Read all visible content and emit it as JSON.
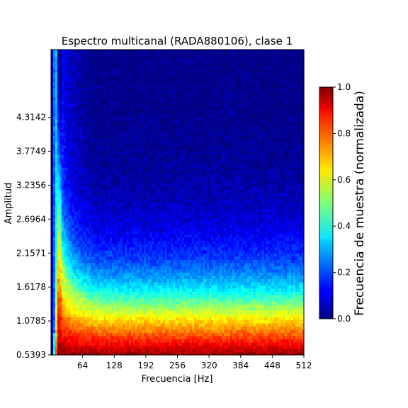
{
  "chart_data": {
    "type": "heatmap",
    "title": "Espectro multicanal (RADA880106), clase 1",
    "xlabel": "Frecuencia [Hz]",
    "ylabel": "Amplitud",
    "xlim": [
      0,
      512
    ],
    "ylim": [
      0.5393,
      5.39
    ],
    "x_ticks": [
      64,
      128,
      192,
      256,
      320,
      384,
      448,
      512
    ],
    "x_tick_labels": [
      "64",
      "128",
      "192",
      "256",
      "320",
      "384",
      "448",
      "512"
    ],
    "y_ticks": [
      0.5393,
      1.0785,
      1.6178,
      2.1571,
      2.6964,
      3.2356,
      3.7749,
      4.3142
    ],
    "y_tick_labels": [
      "0.5393",
      "1.0785",
      "1.6178",
      "2.1571",
      "2.6964",
      "3.2356",
      "3.7749",
      "4.3142"
    ],
    "colormap": "jet",
    "colorbar": {
      "label": "Frecuencia de muestra (normalizada)",
      "range": [
        0,
        1
      ],
      "ticks": [
        0.0,
        0.2,
        0.4,
        0.6,
        0.8,
        1.0
      ],
      "tick_labels": [
        "0.0",
        "0.2",
        "0.4",
        "0.6",
        "0.8",
        "1.0"
      ]
    },
    "description_of_values": {
      "low_frequency_band_hz": [
        0,
        20
      ],
      "plateau_transition_amplitude": 1.8,
      "peak_ridge_amplitude_at_16hz": 4.3
    },
    "grid": false
  }
}
